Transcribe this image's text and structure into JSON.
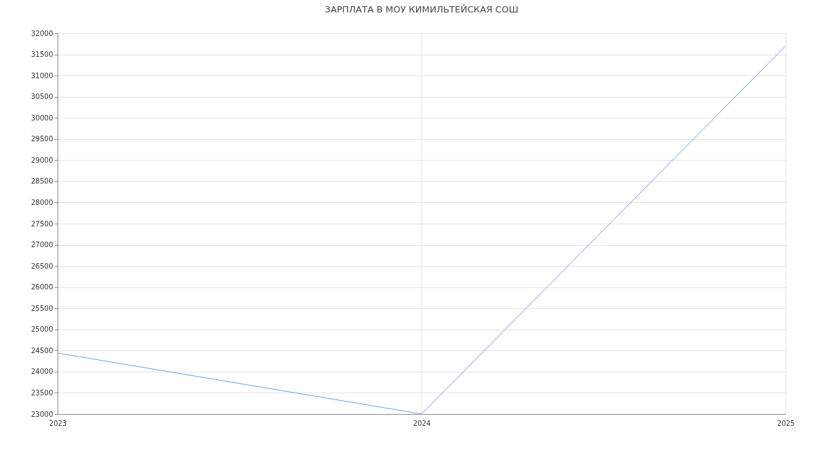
{
  "chart_data": {
    "type": "line",
    "title": "ЗАРПЛАТА В МОУ КИМИЛЬТЕЙСКАЯ СОШ",
    "x": [
      2023,
      2024,
      2025
    ],
    "series": [
      {
        "color": "#6d9eeb",
        "values": [
          24440,
          23000,
          31700
        ]
      }
    ],
    "xlim": [
      2023,
      2025
    ],
    "xticks": [
      2023,
      2024,
      2025
    ],
    "ylim": [
      23000,
      32000
    ],
    "yticks": [
      23000,
      23500,
      24000,
      24500,
      25000,
      25500,
      26000,
      26500,
      27000,
      27500,
      28000,
      28500,
      29000,
      29500,
      30000,
      30500,
      31000,
      31500,
      32000
    ],
    "grid": true,
    "legend": false,
    "marker": "none",
    "line_style": "solid"
  }
}
